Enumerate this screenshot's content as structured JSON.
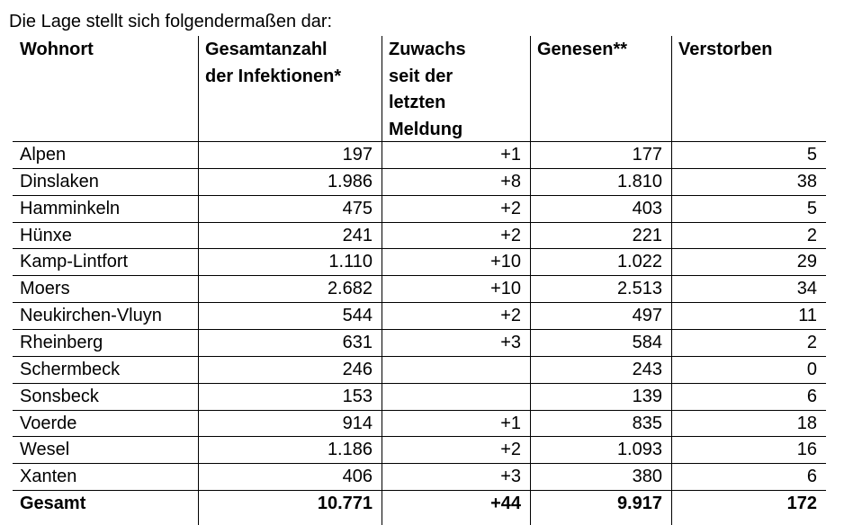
{
  "intro": "Die Lage stellt sich folgendermaßen dar:",
  "table": {
    "header": [
      [
        "Wohnort"
      ],
      [
        "Gesamtanzahl",
        "der Infektionen*"
      ],
      [
        "Zuwachs",
        "seit der",
        "letzten",
        "Meldung"
      ],
      [
        "Genesen**"
      ],
      [
        "Verstorben"
      ]
    ],
    "rows": [
      [
        "Alpen",
        "197",
        "+1",
        "177",
        "5"
      ],
      [
        "Dinslaken",
        "1.986",
        "+8",
        "1.810",
        "38"
      ],
      [
        "Hamminkeln",
        "475",
        "+2",
        "403",
        "5"
      ],
      [
        "Hünxe",
        "241",
        "+2",
        "221",
        "2"
      ],
      [
        "Kamp-Lintfort",
        "1.110",
        "+10",
        "1.022",
        "29"
      ],
      [
        "Moers",
        "2.682",
        "+10",
        "2.513",
        "34"
      ],
      [
        "Neukirchen-Vluyn",
        "544",
        "+2",
        "497",
        "11"
      ],
      [
        "Rheinberg",
        "631",
        "+3",
        "584",
        "2"
      ],
      [
        "Schermbeck",
        "246",
        null,
        "243",
        "0"
      ],
      [
        "Sonsbeck",
        "153",
        null,
        "139",
        "6"
      ],
      [
        "Voerde",
        "914",
        "+1",
        "835",
        "18"
      ],
      [
        "Wesel",
        "1.186",
        "+2",
        "1.093",
        "16"
      ],
      [
        "Xanten",
        "406",
        "+3",
        "380",
        "6"
      ]
    ],
    "total": [
      "Gesamt",
      "10.771",
      "+44",
      "9.917",
      "172"
    ]
  }
}
